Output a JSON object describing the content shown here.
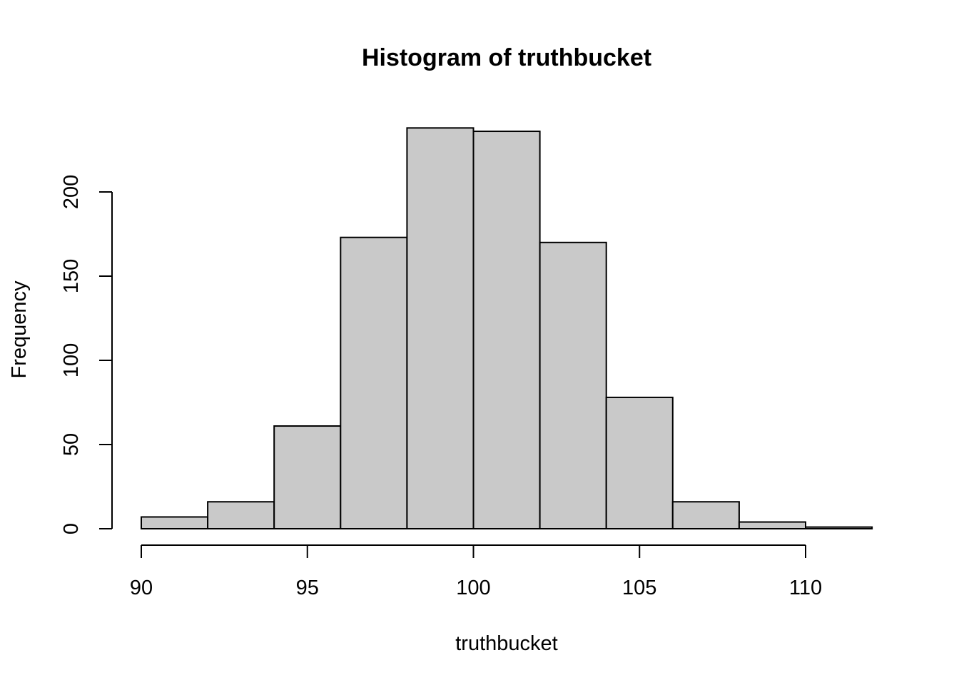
{
  "chart_data": {
    "type": "bar",
    "title": "Histogram of truthbucket",
    "xlabel": "truthbucket",
    "ylabel": "Frequency",
    "bin_edges": [
      90,
      92,
      94,
      96,
      98,
      100,
      102,
      104,
      106,
      108,
      110,
      112
    ],
    "values": [
      7,
      16,
      61,
      173,
      238,
      236,
      170,
      78,
      16,
      4,
      1
    ],
    "x_ticks": [
      90,
      95,
      100,
      105,
      110
    ],
    "x_tick_labels": [
      "90",
      "95",
      "100",
      "105",
      "110"
    ],
    "y_ticks": [
      0,
      50,
      100,
      150,
      200
    ],
    "y_tick_labels": [
      "0",
      "50",
      "100",
      "150",
      "200"
    ],
    "xlim": [
      90,
      112
    ],
    "ylim": [
      0,
      240
    ],
    "grid": false,
    "legend": "none",
    "colors": {
      "bar_fill": "#c9c9c9",
      "bar_stroke": "#000000",
      "axis": "#000000",
      "background": "#ffffff"
    }
  }
}
